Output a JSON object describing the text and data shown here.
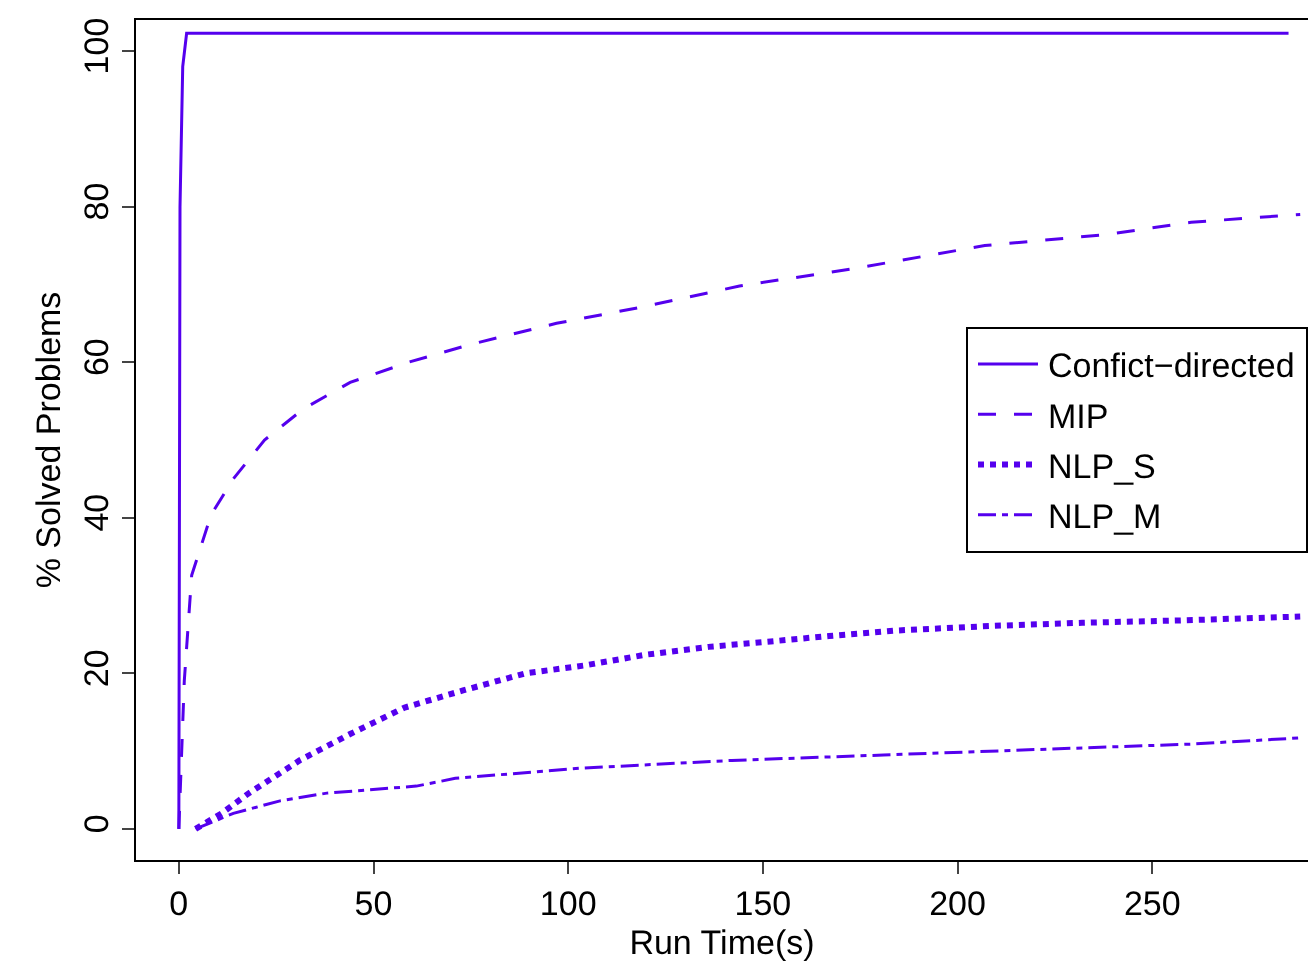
{
  "chart_data": {
    "type": "line",
    "xlabel": "Run Time(s)",
    "ylabel": "% Solved Problems",
    "xlim": [
      -11,
      290
    ],
    "ylim": [
      -4,
      104
    ],
    "xticks": [
      0,
      50,
      100,
      150,
      200,
      250
    ],
    "yticks": [
      0,
      20,
      40,
      60,
      80,
      100
    ],
    "grid": false,
    "legend": "right",
    "marker": "none",
    "series": [
      {
        "name": "Confict−directed",
        "color": "#5500ee",
        "line_style": "solid",
        "x": [
          0,
          0.3,
          1,
          2,
          285
        ],
        "values": [
          0,
          80,
          98,
          102.3,
          102.3
        ]
      },
      {
        "name": "MIP",
        "color": "#5500ee",
        "line_style": "dashed",
        "x": [
          0,
          1.4,
          3.3,
          8.3,
          14,
          22,
          32,
          44,
          59,
          75,
          97,
          120,
          144,
          173,
          207,
          238,
          260,
          288
        ],
        "values": [
          0,
          19,
          32.6,
          40.4,
          45,
          50,
          54,
          57.4,
          60,
          62.3,
          65,
          67.2,
          69.8,
          72,
          75,
          76.4,
          78,
          79
        ]
      },
      {
        "name": "NLP_S",
        "color": "#5500ee",
        "line_style": "dotted",
        "x": [
          4.3,
          11,
          18,
          31,
          44,
          58,
          73,
          89,
          104,
          120,
          136,
          152,
          167,
          184,
          209,
          232,
          257,
          288
        ],
        "values": [
          0,
          2,
          4.6,
          8.8,
          12.2,
          15.6,
          17.8,
          20,
          21,
          22.4,
          23.4,
          24.1,
          24.8,
          25.5,
          26.1,
          26.5,
          26.8,
          27.3
        ]
      },
      {
        "name": "NLP_M",
        "color": "#5500ee",
        "line_style": "dashdot",
        "x": [
          4.3,
          14,
          26,
          38,
          61,
          71,
          103,
          142,
          181,
          220,
          260,
          288
        ],
        "values": [
          0,
          2,
          3.6,
          4.6,
          5.5,
          6.5,
          7.8,
          8.8,
          9.5,
          10.2,
          10.9,
          11.7
        ]
      }
    ]
  }
}
